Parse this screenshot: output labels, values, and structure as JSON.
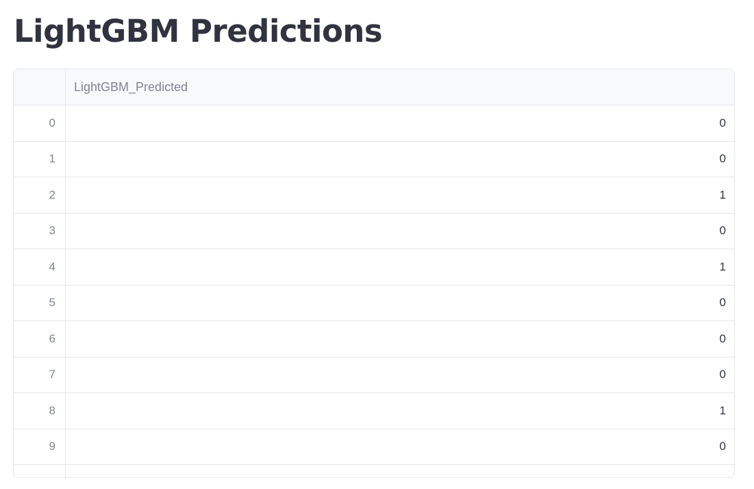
{
  "title": "LightGBM Predictions",
  "table": {
    "columns": [
      "LightGBM_Predicted"
    ],
    "rows": [
      {
        "index": "0",
        "value": "0"
      },
      {
        "index": "1",
        "value": "0"
      },
      {
        "index": "2",
        "value": "1"
      },
      {
        "index": "3",
        "value": "0"
      },
      {
        "index": "4",
        "value": "1"
      },
      {
        "index": "5",
        "value": "0"
      },
      {
        "index": "6",
        "value": "0"
      },
      {
        "index": "7",
        "value": "0"
      },
      {
        "index": "8",
        "value": "1"
      },
      {
        "index": "9",
        "value": "0"
      }
    ]
  }
}
